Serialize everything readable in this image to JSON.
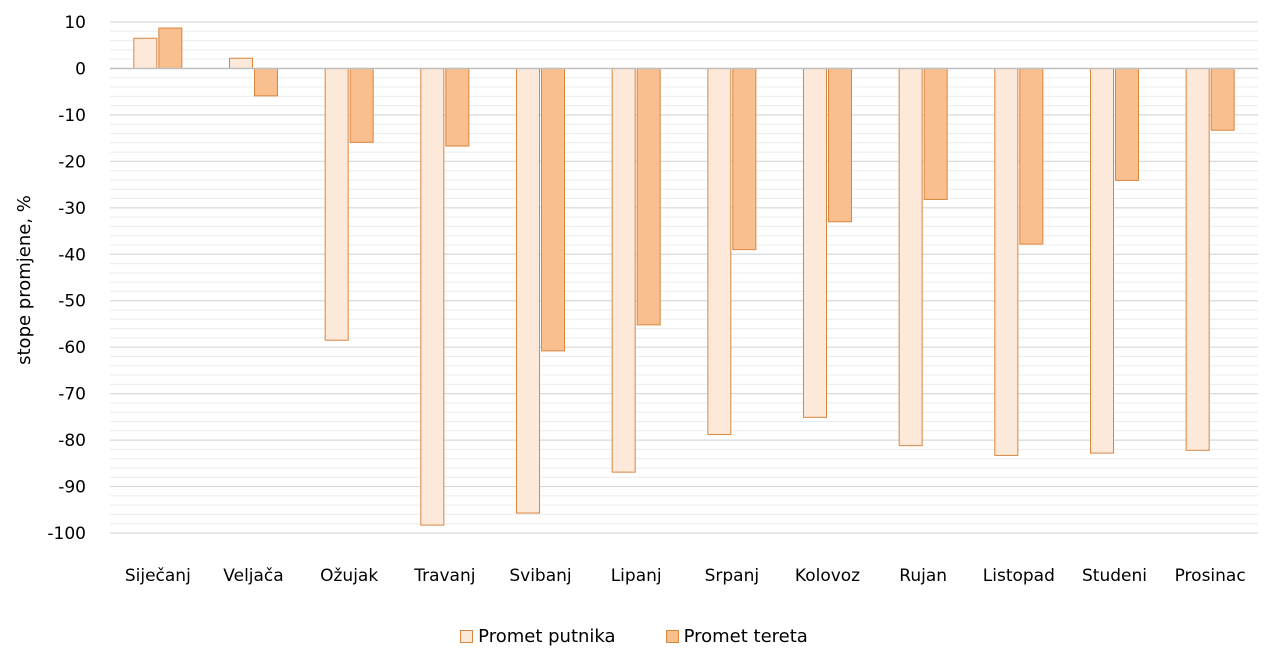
{
  "chart_data": {
    "type": "bar",
    "title": "",
    "xlabel": "",
    "ylabel": "stope promjene, %",
    "ylim": [
      -100,
      10
    ],
    "y_major_ticks": [
      10,
      0,
      -10,
      -20,
      -30,
      -40,
      -50,
      -60,
      -70,
      -80,
      -90,
      -100
    ],
    "grid": true,
    "legend_position": "bottom",
    "categories": [
      "Siječanj",
      "Veljača",
      "Ožujak",
      "Travanj",
      "Svibanj",
      "Lipanj",
      "Srpanj",
      "Kolovoz",
      "Rujan",
      "Listopad",
      "Studeni",
      "Prosinac"
    ],
    "series": [
      {
        "name": "Promet putnika",
        "color": "#fde9d9",
        "values": [
          6.5,
          2.2,
          -58.5,
          -98.3,
          -95.7,
          -86.9,
          -78.8,
          -75.1,
          -81.2,
          -83.3,
          -82.8,
          -82.2
        ]
      },
      {
        "name": "Promet tereta",
        "color": "#f9bf8f",
        "values": [
          8.7,
          -5.9,
          -15.9,
          -16.7,
          -60.8,
          -55.2,
          -39.0,
          -33.0,
          -28.2,
          -37.8,
          -24.1,
          -13.3
        ]
      }
    ],
    "stroke_color": "#d9863f"
  }
}
